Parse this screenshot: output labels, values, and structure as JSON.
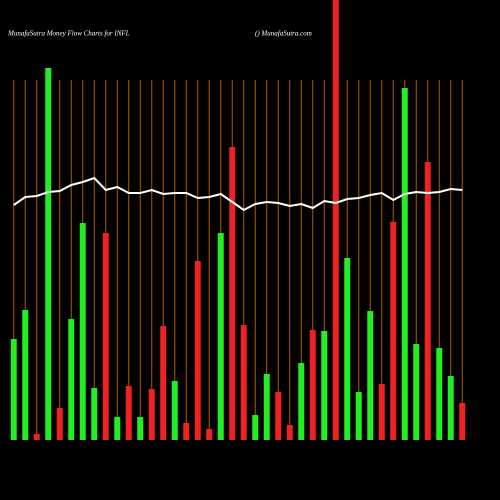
{
  "chart_data": {
    "type": "bar",
    "title": "MunafaSutra  Money Flow  Charts for INFL",
    "subtitle": "() MunafaSutra.com",
    "values": [
      101,
      130,
      6,
      372,
      32,
      121,
      217,
      52,
      207,
      23,
      54,
      23,
      51,
      114,
      59,
      17,
      179,
      11,
      207,
      293,
      115,
      25,
      66,
      48,
      15,
      77,
      110,
      109,
      460,
      182,
      48,
      129,
      56,
      218,
      352,
      96,
      278,
      92,
      64,
      37
    ],
    "bar_colors": [
      "#22ee22",
      "#22ee22",
      "#ee2222",
      "#22ee22",
      "#ee2222",
      "#22ee22",
      "#22ee22",
      "#22ee22",
      "#ee2222",
      "#22ee22",
      "#ee2222",
      "#22ee22",
      "#ee2222",
      "#ee2222",
      "#22ee22",
      "#ee2222",
      "#ee2222",
      "#ee2222",
      "#22ee22",
      "#ee2222",
      "#ee2222",
      "#22ee22",
      "#22ee22",
      "#ee2222",
      "#ee2222",
      "#22ee22",
      "#ee2222",
      "#22ee22",
      "#ee2222",
      "#22ee22",
      "#22ee22",
      "#22ee22",
      "#ee2222",
      "#ee2222",
      "#22ee22",
      "#22ee22",
      "#ee2222",
      "#22ee22",
      "#22ee22",
      "#ee2222"
    ],
    "line": {
      "color": "#ffffff",
      "values": [
        235,
        243,
        244,
        248,
        249,
        255,
        258,
        262,
        250,
        253,
        247,
        247,
        250,
        246,
        247,
        247,
        242,
        243,
        246,
        238,
        230,
        236,
        238,
        237,
        234,
        236,
        232,
        239,
        237,
        241,
        242,
        245,
        247,
        240,
        246,
        248,
        247,
        248,
        251,
        250
      ]
    },
    "ylim": [
      0,
      440
    ],
    "grid": true,
    "grid_color": "#b35a00"
  }
}
